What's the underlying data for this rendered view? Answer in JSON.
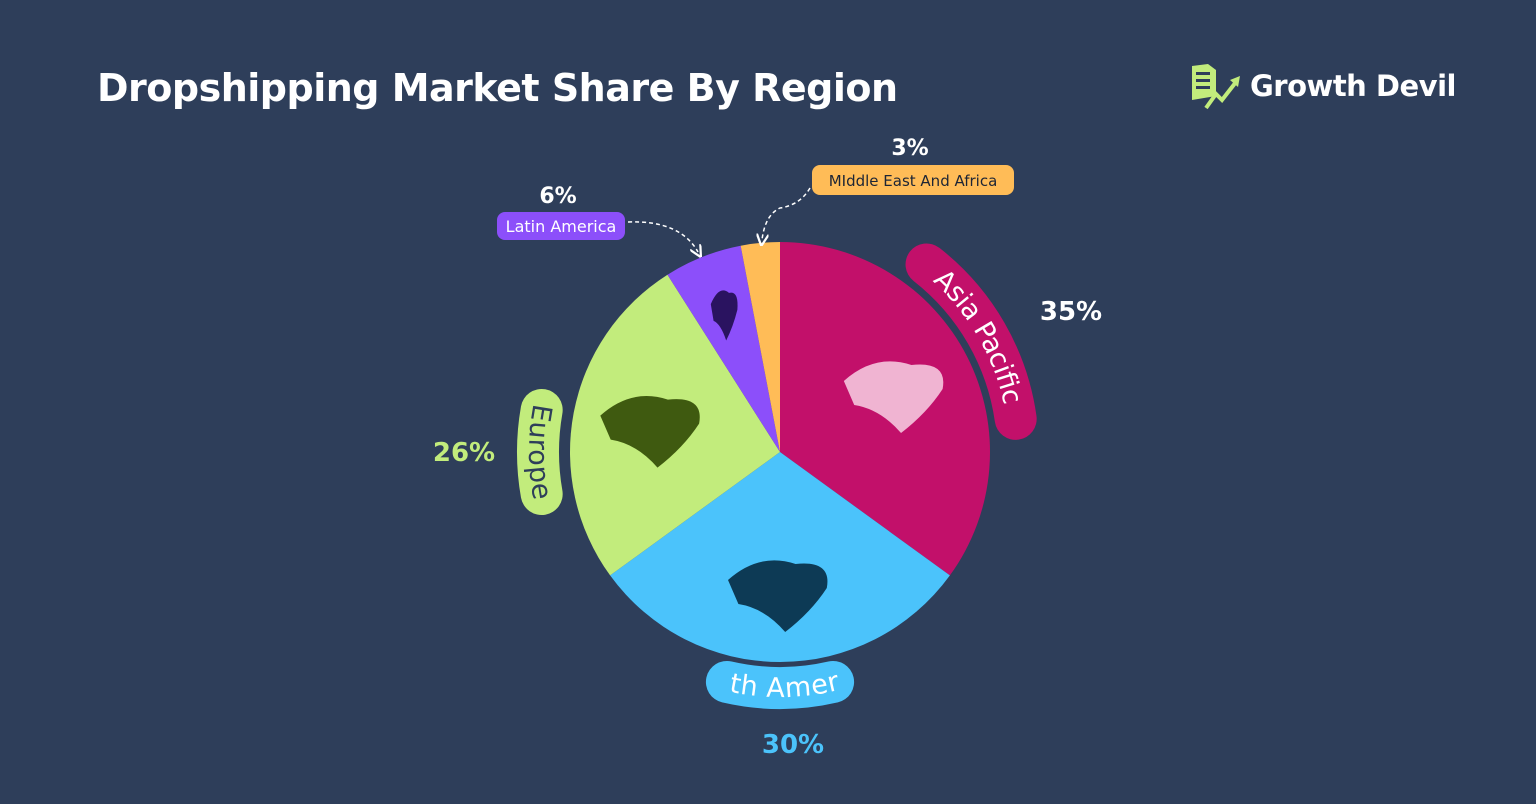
{
  "title": "Dropshipping Market Share By Region",
  "brand": {
    "name": "Growth Devil",
    "color": "#c2ec7c"
  },
  "background": "#2e3e5a",
  "chart_data": {
    "type": "pie",
    "title": "Dropshipping Market Share By Region",
    "start": "12 o'clock, clockwise",
    "slices": [
      {
        "label": "Asia Pacific",
        "value": 35,
        "value_label": "35%",
        "color": "#c2106a",
        "label_text_color": "#ffffff",
        "pct_color": "#ffffff",
        "icon": "asia-map-icon",
        "icon_color": "#f0b4d2"
      },
      {
        "label": "North America",
        "value": 30,
        "value_label": "30%",
        "color": "#4bc3fb",
        "label_text_color": "#ffffff",
        "pct_color": "#4bc3fb",
        "icon": "north-america-map-icon",
        "icon_color": "#0d3a55"
      },
      {
        "label": "Europe",
        "value": 26,
        "value_label": "26%",
        "color": "#c2ec7c",
        "label_text_color": "#2e3e5a",
        "pct_color": "#c2ec7c",
        "icon": "europe-map-icon",
        "icon_color": "#3f5a10"
      },
      {
        "label": "Latin America",
        "value": 6,
        "value_label": "6%",
        "color": "#8c4ffa",
        "label_text_color": "#ffffff",
        "pct_color": "#ffffff",
        "icon": "south-america-map-icon",
        "icon_color": "#2a1360"
      },
      {
        "label": "MIddle East And Africa",
        "value": 3,
        "value_label": "3%",
        "color": "#ffbc57",
        "label_text_color": "#1d2535",
        "pct_color": "#ffffff",
        "icon": "",
        "icon_color": ""
      }
    ]
  }
}
